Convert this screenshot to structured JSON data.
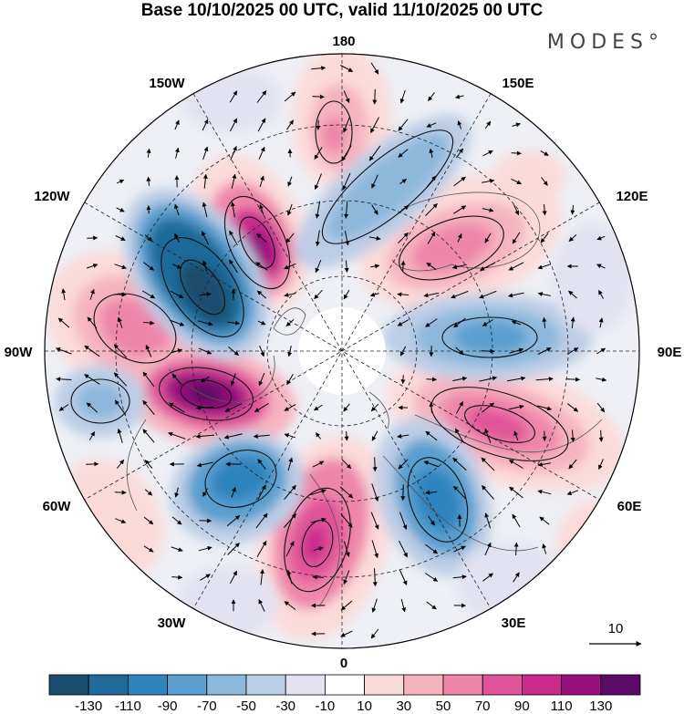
{
  "title": "Base 10/10/2025 00 UTC, valid 11/10/2025 00 UTC",
  "brand": "MODES°",
  "longitude_labels": {
    "lon_180": "180",
    "lon_150e": "150E",
    "lon_120e": "120E",
    "lon_90e": "90E",
    "lon_60e": "60E",
    "lon_30e": "30E",
    "lon_0": "0",
    "lon_30w": "30W",
    "lon_60w": "60W",
    "lon_90w": "90W",
    "lon_120w": "120W",
    "lon_150w": "150W"
  },
  "vector_scale": {
    "label": "10"
  },
  "colorbar": {
    "ticks": [
      "-130",
      "-110",
      "-90",
      "-70",
      "-50",
      "-30",
      "-10",
      "10",
      "30",
      "50",
      "70",
      "90",
      "110",
      "130"
    ],
    "colors": [
      "#1b4e6e",
      "#1f6a99",
      "#2f84bd",
      "#5a9fcf",
      "#8cb8dc",
      "#bccde6",
      "#e2e2f0",
      "#ffffff",
      "#fbdada",
      "#f5b3c0",
      "#ee86aa",
      "#e0559a",
      "#c92a8c",
      "#97107c",
      "#5c0a68"
    ]
  }
}
